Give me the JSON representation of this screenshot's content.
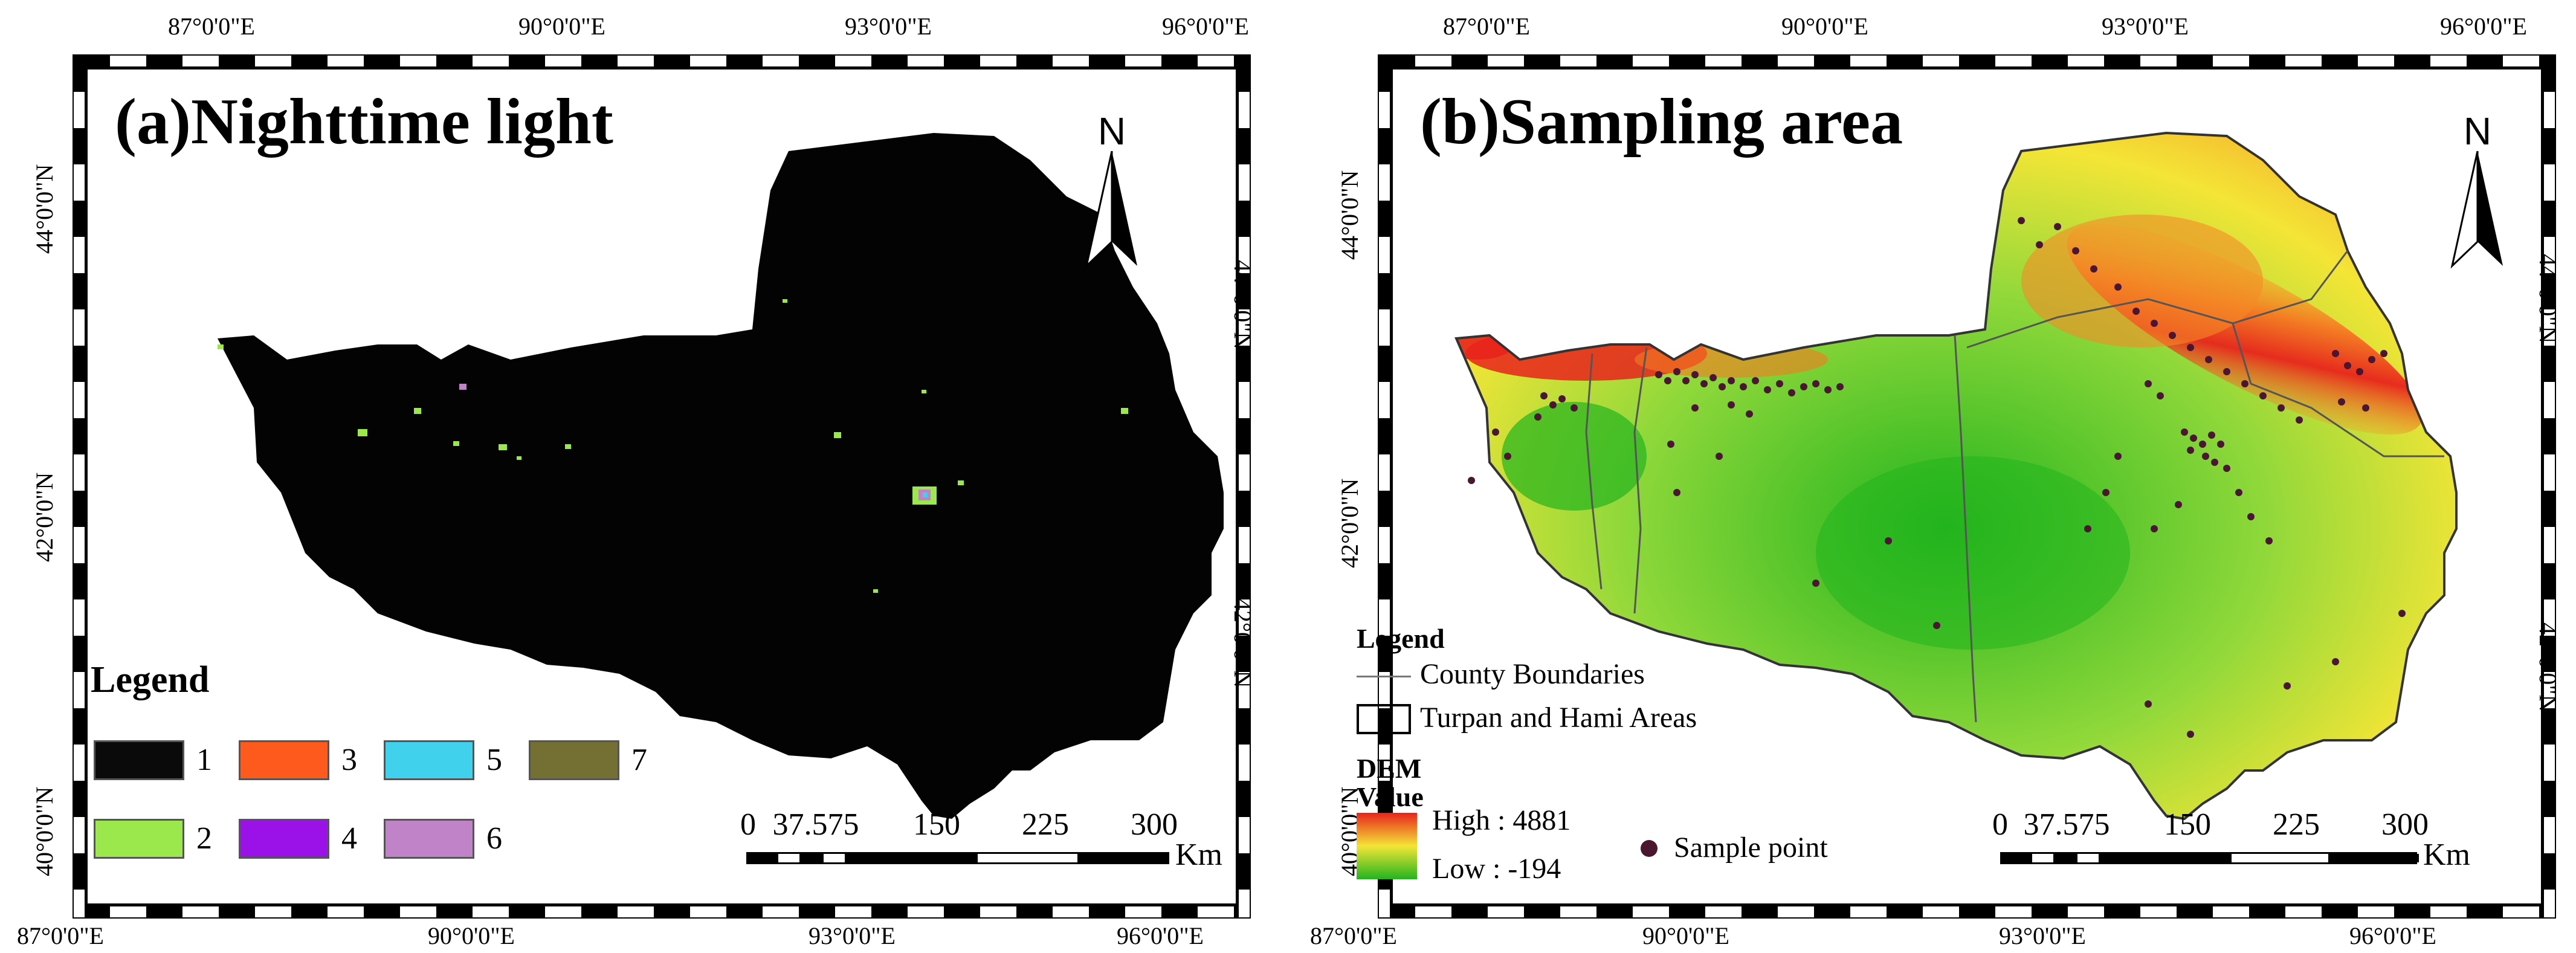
{
  "panel_a": {
    "title": "(a)Nighttime light",
    "north": "N",
    "legend": {
      "title": "Legend",
      "items": [
        {
          "label": "1",
          "color": "#0a0a0a"
        },
        {
          "label": "2",
          "color": "#9be84d"
        },
        {
          "label": "3",
          "color": "#ff5a1e"
        },
        {
          "label": "4",
          "color": "#9a12e8"
        },
        {
          "label": "5",
          "color": "#40d2ec"
        },
        {
          "label": "6",
          "color": "#c183c8"
        },
        {
          "label": "7",
          "color": "#746f33"
        }
      ]
    },
    "scale": {
      "labels": [
        "0",
        "37.575",
        "150",
        "225",
        "300"
      ],
      "unit": "Km"
    }
  },
  "panel_b": {
    "title": "(b)Sampling area",
    "north": "N",
    "legend": {
      "title": "Legend",
      "county": "County Boundaries",
      "area": "Turpan and Hami Areas",
      "dem_title": "DEM",
      "dem_value": "Value",
      "high": "High : 4881",
      "low": "Low : -194",
      "sample": "Sample point",
      "colors": {
        "high": "#e8231c",
        "mid": "#f4e536",
        "low": "#23b41e",
        "point": "#4a1630"
      }
    },
    "scale": {
      "labels": [
        "0",
        "37.575",
        "150",
        "225",
        "300"
      ],
      "unit": "Km"
    }
  },
  "graticule": {
    "top": [
      "87°0'0\"E",
      "90°0'0\"E",
      "93°0'0\"E",
      "96°0'0\"E"
    ],
    "bottom": [
      "87°0'0\"E",
      "90°0'0\"E",
      "93°0'0\"E",
      "96°0'0\"E"
    ],
    "left": [
      "44°0'0\"N",
      "42°0'0\"N",
      "40°0'0\"N"
    ],
    "right": [
      "44°0'0\"N",
      "42°0'0\"N"
    ]
  }
}
